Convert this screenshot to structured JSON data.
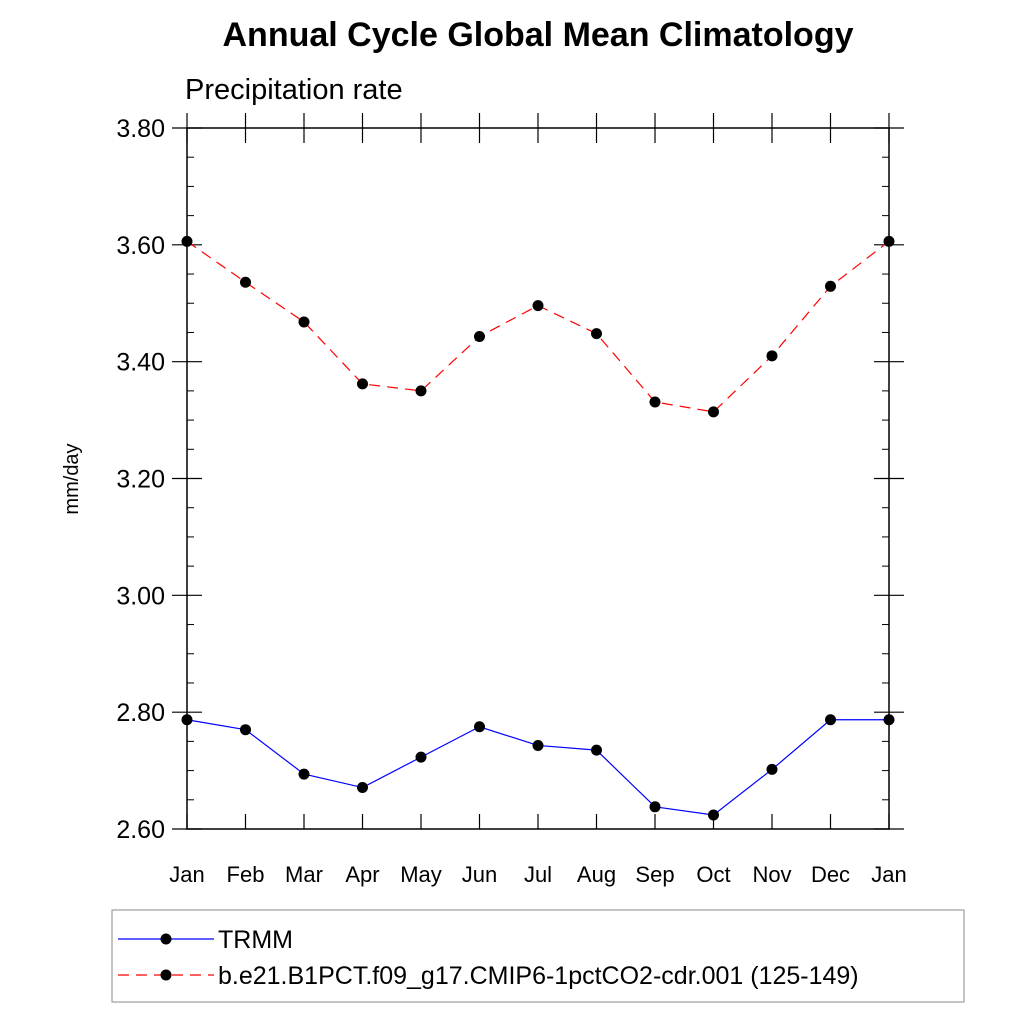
{
  "chart_data": {
    "type": "line",
    "title": "Annual Cycle Global Mean Climatology",
    "subtitle": "Precipitation rate",
    "xlabel": "",
    "ylabel": "mm/day",
    "categories": [
      "Jan",
      "Feb",
      "Mar",
      "Apr",
      "May",
      "Jun",
      "Jul",
      "Aug",
      "Sep",
      "Oct",
      "Nov",
      "Dec",
      "Jan"
    ],
    "ylim": [
      2.6,
      3.8
    ],
    "yticks": [
      2.6,
      2.8,
      3.0,
      3.2,
      3.4,
      3.6,
      3.8
    ],
    "ytick_labels": [
      "2.60",
      "2.80",
      "3.00",
      "3.20",
      "3.40",
      "3.60",
      "3.80"
    ],
    "y_minor_step": 0.05,
    "grid": false,
    "legend_position": "bottom",
    "series": [
      {
        "name": "TRMM",
        "color": "#0000ff",
        "line_style": "solid",
        "marker": "filled-circle",
        "values": [
          2.787,
          2.77,
          2.694,
          2.671,
          2.723,
          2.775,
          2.743,
          2.735,
          2.638,
          2.624,
          2.702,
          2.787,
          2.787
        ]
      },
      {
        "name": "b.e21.B1PCT.f09_g17.CMIP6-1pctCO2-cdr.001 (125-149)",
        "color": "#ff0000",
        "line_style": "dashed",
        "marker": "filled-circle",
        "values": [
          3.606,
          3.536,
          3.468,
          3.362,
          3.35,
          3.443,
          3.496,
          3.448,
          3.331,
          3.314,
          3.41,
          3.529,
          3.606
        ]
      }
    ]
  }
}
